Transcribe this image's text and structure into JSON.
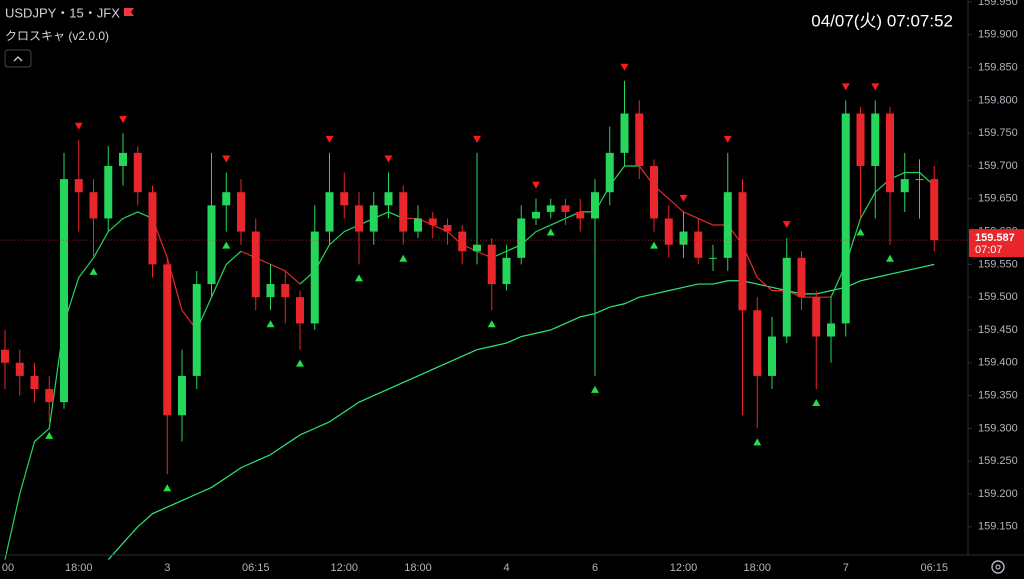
{
  "header": {
    "symbol": "USDJPY・15・JFX",
    "indicator": "クロスキャ (v2.0.0)",
    "clock": "04/07(火)  07:07:52"
  },
  "chart_data": {
    "type": "candlestick",
    "categories": [
      "00",
      null,
      null,
      null,
      null,
      "18:00",
      null,
      null,
      null,
      null,
      null,
      "3",
      null,
      null,
      null,
      null,
      null,
      "06:15",
      null,
      null,
      null,
      null,
      null,
      "12:00",
      null,
      null,
      null,
      null,
      "18:00",
      null,
      null,
      null,
      null,
      null,
      "4",
      null,
      null,
      null,
      null,
      null,
      "6",
      null,
      null,
      null,
      null,
      null,
      "12:00",
      null,
      null,
      null,
      null,
      "18:00",
      null,
      null,
      null,
      null,
      null,
      "7",
      null,
      null,
      null,
      null,
      null,
      "06:15"
    ],
    "open": [
      159.42,
      159.4,
      159.38,
      159.36,
      159.34,
      159.68,
      159.66,
      159.62,
      159.7,
      159.72,
      159.66,
      159.55,
      159.32,
      159.38,
      159.52,
      159.64,
      159.66,
      159.6,
      159.5,
      159.52,
      159.5,
      159.46,
      159.6,
      159.66,
      159.64,
      159.6,
      159.64,
      159.66,
      159.6,
      159.62,
      159.61,
      159.6,
      159.57,
      159.58,
      159.52,
      159.56,
      159.62,
      159.63,
      159.64,
      159.63,
      159.62,
      159.66,
      159.72,
      159.78,
      159.7,
      159.62,
      159.58,
      159.6,
      159.56,
      159.56,
      159.66,
      159.48,
      159.38,
      159.44,
      159.56,
      159.5,
      159.44,
      159.46,
      159.78,
      159.7,
      159.78,
      159.66,
      159.68,
      159.68
    ],
    "high": [
      159.45,
      159.42,
      159.4,
      159.38,
      159.72,
      159.74,
      159.68,
      159.73,
      159.75,
      159.73,
      159.67,
      159.56,
      159.42,
      159.54,
      159.72,
      159.69,
      159.68,
      159.62,
      159.55,
      159.54,
      159.51,
      159.64,
      159.72,
      159.69,
      159.66,
      159.66,
      159.69,
      159.67,
      159.64,
      159.63,
      159.62,
      159.61,
      159.72,
      159.59,
      159.58,
      159.64,
      159.65,
      159.65,
      159.65,
      159.65,
      159.68,
      159.76,
      159.83,
      159.8,
      159.71,
      159.64,
      159.63,
      159.62,
      159.58,
      159.72,
      159.68,
      159.5,
      159.47,
      159.59,
      159.57,
      159.51,
      159.5,
      159.8,
      159.79,
      159.8,
      159.79,
      159.72,
      159.71,
      159.7
    ],
    "low": [
      159.36,
      159.35,
      159.34,
      159.31,
      159.33,
      159.6,
      159.56,
      159.6,
      159.67,
      159.64,
      159.53,
      159.23,
      159.28,
      159.36,
      159.5,
      159.6,
      159.58,
      159.48,
      159.48,
      159.46,
      159.42,
      159.45,
      159.58,
      159.62,
      159.55,
      159.58,
      159.62,
      159.58,
      159.59,
      159.59,
      159.58,
      159.55,
      159.55,
      159.48,
      159.51,
      159.55,
      159.61,
      159.62,
      159.61,
      159.6,
      159.38,
      159.64,
      159.7,
      159.68,
      159.6,
      159.56,
      159.56,
      159.55,
      159.54,
      159.54,
      159.32,
      159.3,
      159.36,
      159.43,
      159.48,
      159.36,
      159.4,
      159.44,
      159.62,
      159.62,
      159.58,
      159.63,
      159.62,
      159.57
    ],
    "close": [
      159.4,
      159.38,
      159.36,
      159.34,
      159.68,
      159.66,
      159.62,
      159.7,
      159.72,
      159.66,
      159.55,
      159.32,
      159.38,
      159.52,
      159.64,
      159.66,
      159.6,
      159.5,
      159.52,
      159.5,
      159.46,
      159.6,
      159.66,
      159.64,
      159.6,
      159.64,
      159.66,
      159.6,
      159.62,
      159.61,
      159.6,
      159.57,
      159.58,
      159.52,
      159.56,
      159.62,
      159.63,
      159.64,
      159.63,
      159.62,
      159.66,
      159.72,
      159.78,
      159.7,
      159.62,
      159.58,
      159.6,
      159.56,
      159.56,
      159.66,
      159.48,
      159.38,
      159.44,
      159.56,
      159.5,
      159.44,
      159.46,
      159.78,
      159.7,
      159.78,
      159.66,
      159.68,
      159.68,
      159.587
    ],
    "up_color": "#26d65c",
    "down_color": "#e8262b",
    "lines": [
      {
        "color": "#26d65c",
        "values": [
          159.1,
          159.2,
          159.28,
          159.3,
          159.46,
          159.53,
          159.56,
          159.6,
          159.62,
          159.63,
          159.62,
          null,
          null,
          159.45,
          159.5,
          159.55,
          159.57,
          null,
          null,
          null,
          159.52,
          159.54,
          159.58,
          159.6,
          159.61,
          159.62,
          159.63,
          159.62,
          null,
          null,
          null,
          null,
          null,
          159.56,
          159.57,
          159.58,
          159.6,
          159.61,
          159.62,
          159.63,
          159.63,
          159.67,
          159.7,
          159.7,
          null,
          null,
          null,
          null,
          null,
          null,
          null,
          null,
          null,
          null,
          null,
          null,
          159.5,
          159.55,
          159.62,
          159.66,
          159.68,
          159.69,
          159.69,
          159.67
        ]
      },
      {
        "color": "#e8262b",
        "values": [
          null,
          null,
          null,
          null,
          null,
          null,
          null,
          null,
          null,
          null,
          159.62,
          159.56,
          159.48,
          159.45,
          null,
          null,
          159.57,
          159.56,
          159.55,
          159.54,
          159.52,
          null,
          null,
          null,
          null,
          null,
          null,
          159.62,
          159.62,
          159.61,
          159.6,
          159.58,
          159.57,
          159.56,
          null,
          null,
          null,
          null,
          null,
          null,
          null,
          null,
          null,
          159.7,
          159.67,
          159.65,
          159.63,
          159.62,
          159.61,
          159.61,
          159.58,
          159.53,
          159.51,
          159.51,
          159.5,
          159.5,
          159.5,
          null,
          null,
          null,
          null,
          null,
          null,
          null
        ]
      },
      {
        "color": "#2ee87a",
        "values": [
          null,
          null,
          null,
          null,
          null,
          null,
          null,
          159.1,
          159.125,
          159.15,
          159.17,
          159.18,
          159.19,
          159.2,
          159.21,
          159.225,
          159.24,
          159.25,
          159.26,
          159.275,
          159.29,
          159.3,
          159.31,
          159.325,
          159.34,
          159.35,
          159.36,
          159.37,
          159.38,
          159.39,
          159.4,
          159.41,
          159.42,
          159.425,
          159.43,
          159.44,
          159.445,
          159.45,
          159.46,
          159.47,
          159.475,
          159.485,
          159.49,
          159.5,
          159.505,
          159.51,
          159.515,
          159.52,
          159.52,
          159.525,
          159.525,
          159.52,
          159.515,
          159.51,
          159.505,
          159.505,
          159.51,
          159.515,
          159.525,
          159.53,
          159.535,
          159.54,
          159.545,
          159.55
        ]
      }
    ],
    "signals": {
      "buy": [
        3,
        6,
        11,
        15,
        18,
        20,
        24,
        27,
        33,
        37,
        40,
        44,
        51,
        55,
        58,
        60
      ],
      "sell": [
        5,
        8,
        15,
        22,
        26,
        32,
        36,
        42,
        46,
        49,
        53,
        57,
        59
      ],
      "buy_color": "#22e04a",
      "sell_color": "#ff1a1a"
    },
    "countdown": "07:07",
    "ylim": [
      159.107,
      159.953
    ],
    "yticks": [
      {
        "value": 159.15,
        "label": "159.150"
      },
      {
        "value": 159.2,
        "label": "159.200"
      },
      {
        "value": 159.25,
        "label": "159.250"
      },
      {
        "value": 159.3,
        "label": "159.300"
      },
      {
        "value": 159.35,
        "label": "159.350"
      },
      {
        "value": 159.4,
        "label": "159.400"
      },
      {
        "value": 159.45,
        "label": "159.450"
      },
      {
        "value": 159.5,
        "label": "159.500"
      },
      {
        "value": 159.55,
        "label": "159.550"
      },
      {
        "value": 159.6,
        "label": "159.600"
      },
      {
        "value": 159.65,
        "label": "159.650"
      },
      {
        "value": 159.7,
        "label": "159.700"
      },
      {
        "value": 159.75,
        "label": "159.750"
      },
      {
        "value": 159.8,
        "label": "159.800"
      },
      {
        "value": 159.85,
        "label": "159.850"
      },
      {
        "value": 159.9,
        "label": "159.900"
      },
      {
        "value": 159.95,
        "label": "159.950"
      }
    ]
  }
}
